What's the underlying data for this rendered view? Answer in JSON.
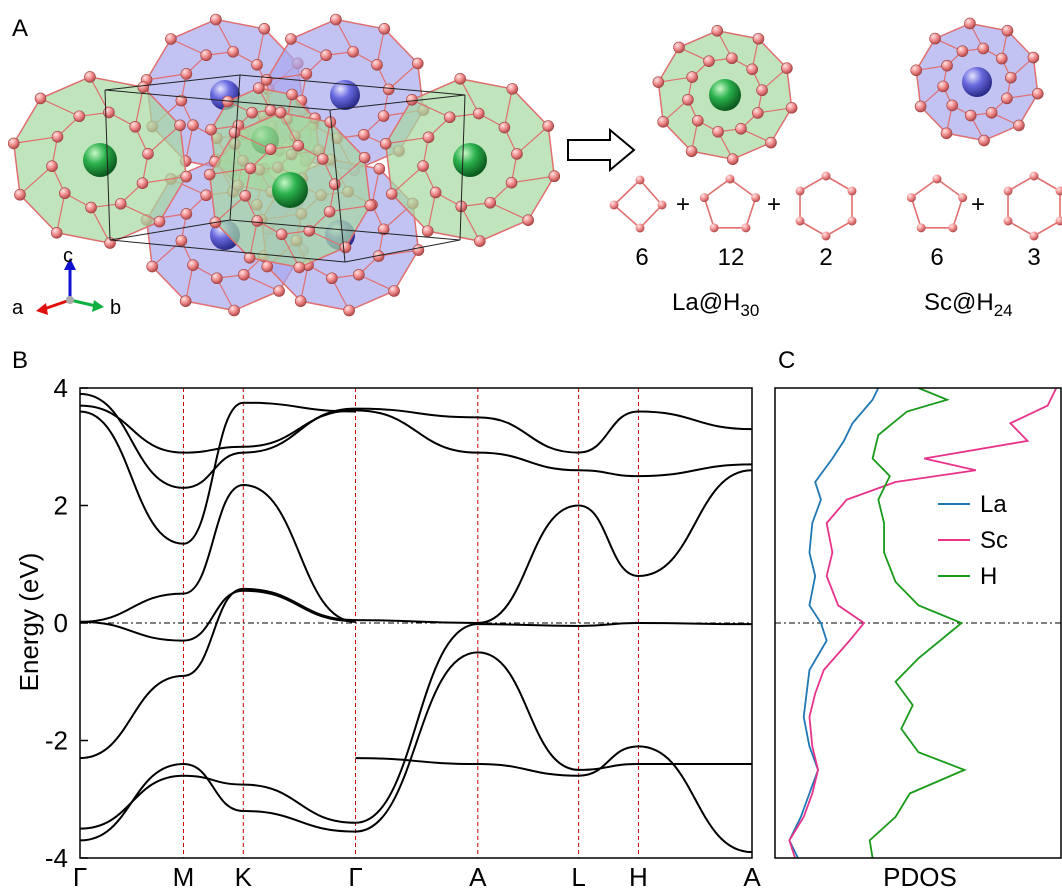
{
  "panels": {
    "a": "A",
    "b": "B",
    "c": "C"
  },
  "structure": {
    "axes": {
      "c": "c",
      "a": "a",
      "b": "b"
    },
    "plus": "+",
    "la_cage": {
      "formula": "La@H",
      "sub": "30",
      "counts": [
        "6",
        "12",
        "2"
      ]
    },
    "sc_cage": {
      "formula": "Sc@H",
      "sub": "24",
      "counts": [
        "6",
        "3"
      ]
    },
    "colors": {
      "la_atom": "#2bb24c",
      "sc_atom": "#6a6ae0",
      "h_atom": "#f08a8a",
      "la_cage": "#a5d8a0",
      "sc_cage": "#a8a8ee",
      "bond": "#e06f6f"
    }
  },
  "chart_data": [
    {
      "type": "line",
      "title": "",
      "ylabel": "Energy (eV)",
      "xlabel": "",
      "ylim": [
        -4,
        4
      ],
      "yticks": [
        "-4",
        "-2",
        "0",
        "2",
        "4"
      ],
      "kpath": [
        "Γ",
        "M",
        "K",
        "Γ",
        "A",
        "L",
        "H",
        "A"
      ],
      "kpos": [
        0,
        0.154,
        0.243,
        0.41,
        0.592,
        0.742,
        0.831,
        1.0
      ],
      "fermi_level": 0,
      "line_color": "#000000",
      "divider_color": "#cc0000",
      "series": [
        {
          "x": [
            0,
            0.154,
            0.243,
            0.41
          ],
          "values": [
            -2.3,
            -0.9,
            0.58,
            0.05
          ]
        },
        {
          "x": [
            0,
            0.154,
            0.243,
            0.41
          ],
          "values": [
            0.02,
            -0.3,
            0.55,
            0.03
          ]
        },
        {
          "x": [
            0,
            0.154,
            0.243,
            0.41
          ],
          "values": [
            0.02,
            0.5,
            2.35,
            0.02
          ]
        },
        {
          "x": [
            0,
            0.154,
            0.243,
            0.41
          ],
          "values": [
            3.9,
            2.3,
            2.9,
            3.65
          ]
        },
        {
          "x": [
            0,
            0.154,
            0.243,
            0.41
          ],
          "values": [
            3.7,
            2.9,
            3.0,
            3.62
          ]
        },
        {
          "x": [
            0,
            0.154,
            0.243,
            0.41
          ],
          "values": [
            3.6,
            1.35,
            3.75,
            3.6
          ]
        },
        {
          "x": [
            0,
            0.154,
            0.243,
            0.41
          ],
          "values": [
            -3.5,
            -2.6,
            -2.75,
            -3.4
          ]
        },
        {
          "x": [
            0,
            0.154,
            0.243,
            0.41
          ],
          "values": [
            -3.7,
            -2.4,
            -3.2,
            -3.55
          ]
        },
        {
          "x": [
            0.41,
            0.592,
            0.742,
            0.831,
            1.0
          ],
          "values": [
            -3.55,
            -0.5,
            -2.5,
            -2.4,
            -2.4
          ]
        },
        {
          "x": [
            0.41,
            0.592,
            0.742,
            0.831,
            1.0
          ],
          "values": [
            -3.4,
            -0.02,
            -0.05,
            0.0,
            -0.02
          ]
        },
        {
          "x": [
            0.41,
            0.592,
            0.742,
            0.831,
            1.0
          ],
          "values": [
            0.05,
            0.0,
            2.0,
            0.8,
            2.6
          ]
        },
        {
          "x": [
            0.41,
            0.592,
            0.742,
            0.831,
            1.0
          ],
          "values": [
            3.62,
            2.9,
            2.6,
            2.5,
            2.7
          ]
        },
        {
          "x": [
            0.41,
            0.592,
            0.742,
            0.831,
            1.0
          ],
          "values": [
            3.65,
            3.5,
            2.9,
            3.6,
            3.3
          ]
        },
        {
          "x": [
            0.41,
            0.592,
            0.742,
            0.831,
            1.0
          ],
          "values": [
            -2.3,
            -2.4,
            -2.6,
            -2.1,
            -3.9
          ]
        }
      ]
    },
    {
      "type": "line",
      "title": "",
      "xlabel": "PDOS",
      "ylabel": "",
      "ylim": [
        -4,
        4
      ],
      "legend_position": "right",
      "fermi_level": 0,
      "series": [
        {
          "name": "La",
          "color": "#1f77b4",
          "y": [
            -4.0,
            -3.7,
            -3.3,
            -2.9,
            -2.5,
            -2.1,
            -1.6,
            -1.2,
            -0.8,
            -0.3,
            0.0,
            0.3,
            0.8,
            1.2,
            1.7,
            2.1,
            2.4,
            2.8,
            3.1,
            3.4,
            3.8,
            4.0
          ],
          "x": [
            0.08,
            0.05,
            0.09,
            0.12,
            0.15,
            0.12,
            0.1,
            0.11,
            0.12,
            0.18,
            0.16,
            0.12,
            0.14,
            0.12,
            0.13,
            0.16,
            0.14,
            0.2,
            0.24,
            0.27,
            0.34,
            0.36
          ]
        },
        {
          "name": "Sc",
          "color": "#e8338a",
          "y": [
            -4.0,
            -3.7,
            -3.3,
            -2.9,
            -2.5,
            -2.1,
            -1.6,
            -1.2,
            -0.8,
            -0.3,
            0.0,
            0.3,
            0.8,
            1.2,
            1.7,
            2.1,
            2.4,
            2.6,
            2.8,
            3.1,
            3.4,
            3.7,
            4.0
          ],
          "x": [
            0.07,
            0.05,
            0.1,
            0.13,
            0.15,
            0.13,
            0.12,
            0.14,
            0.17,
            0.26,
            0.31,
            0.22,
            0.18,
            0.2,
            0.18,
            0.25,
            0.42,
            0.7,
            0.52,
            0.88,
            0.82,
            0.95,
            0.98
          ]
        },
        {
          "name": "H",
          "color": "#1a9a1a",
          "y": [
            -4.0,
            -3.7,
            -3.3,
            -2.9,
            -2.5,
            -2.2,
            -1.8,
            -1.4,
            -1.0,
            -0.6,
            -0.2,
            0.0,
            0.3,
            0.7,
            1.2,
            1.7,
            2.1,
            2.5,
            2.8,
            3.2,
            3.6,
            3.8,
            4.0
          ],
          "x": [
            0.34,
            0.33,
            0.42,
            0.47,
            0.66,
            0.5,
            0.44,
            0.48,
            0.42,
            0.5,
            0.6,
            0.65,
            0.5,
            0.42,
            0.38,
            0.38,
            0.36,
            0.4,
            0.34,
            0.36,
            0.46,
            0.6,
            0.5
          ]
        }
      ]
    }
  ]
}
